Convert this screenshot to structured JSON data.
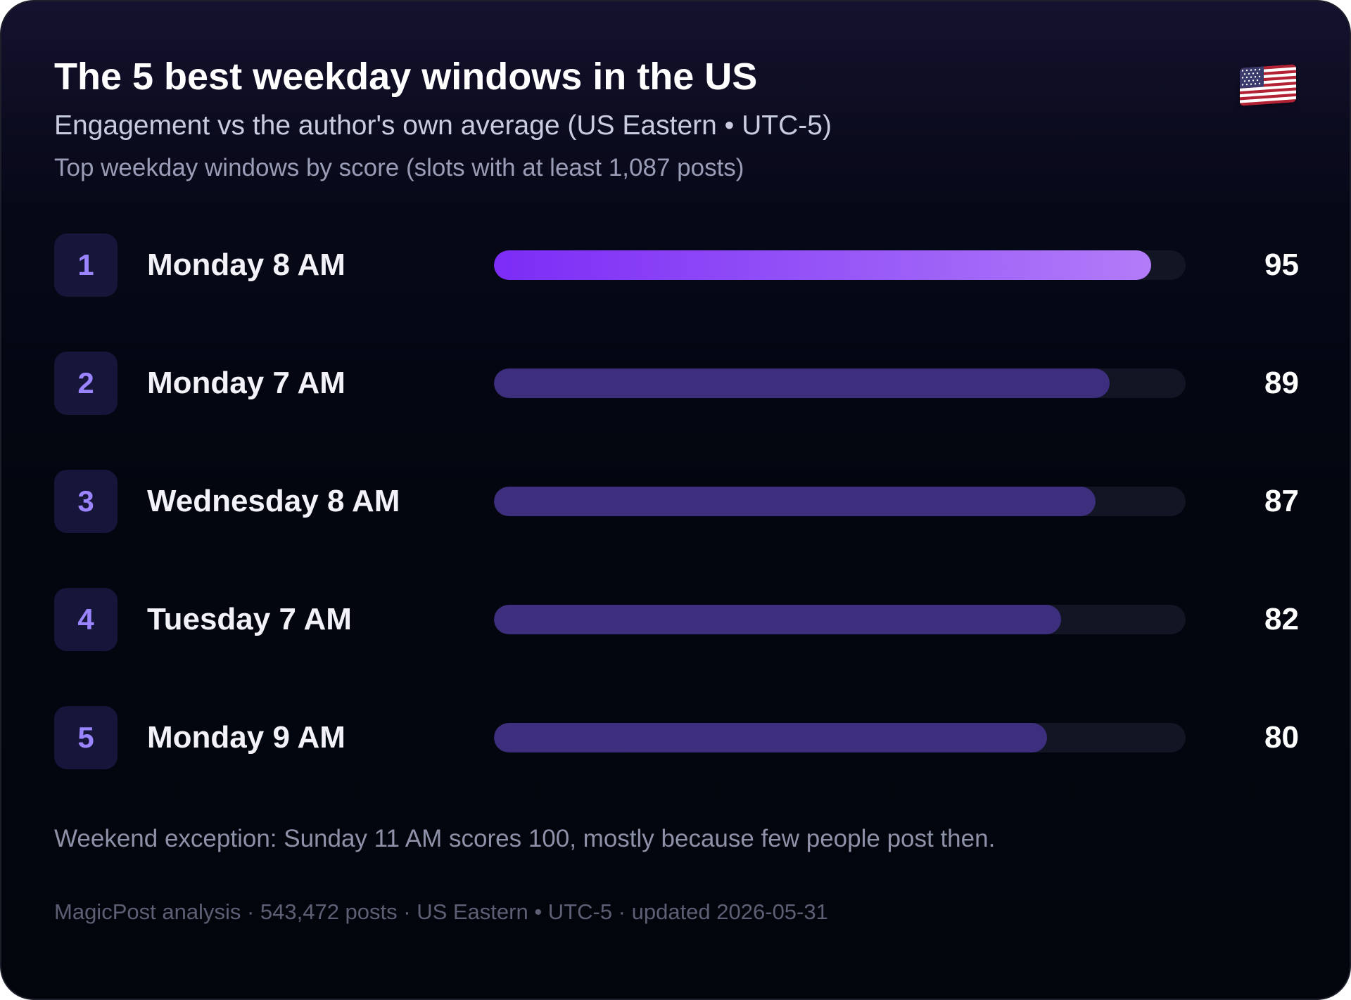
{
  "header": {
    "title": "The 5 best weekday windows in the US",
    "subtitle": "Engagement vs the author's own average (US Eastern • UTC-5)",
    "subtitle2": "Top weekday windows by score (slots with at least 1,087 posts)",
    "flag_icon": "us-flag-icon"
  },
  "colors": {
    "highlight_bar_start": "#7c2cf6",
    "highlight_bar_end": "#b27cf8",
    "bar": "#3d2e7e",
    "track": "#121523",
    "rank_badge": "#16153a",
    "rank_text": "#9a84ff"
  },
  "chart_data": {
    "type": "bar",
    "orientation": "horizontal",
    "title": "The 5 best weekday windows in the US",
    "xlim": [
      0,
      100
    ],
    "grid": false,
    "legend": "none",
    "ranks": [
      "1",
      "2",
      "3",
      "4",
      "5"
    ],
    "categories": [
      "Monday 8 AM",
      "Monday 7 AM",
      "Wednesday 8 AM",
      "Tuesday 7 AM",
      "Monday 9 AM"
    ],
    "values": [
      95,
      89,
      87,
      82,
      80
    ]
  },
  "note": "Weekend exception: Sunday 11 AM scores 100, mostly because few people post then.",
  "footer": "MagicPost analysis · 543,472 posts · US Eastern • UTC-5 · updated 2026-05-31"
}
